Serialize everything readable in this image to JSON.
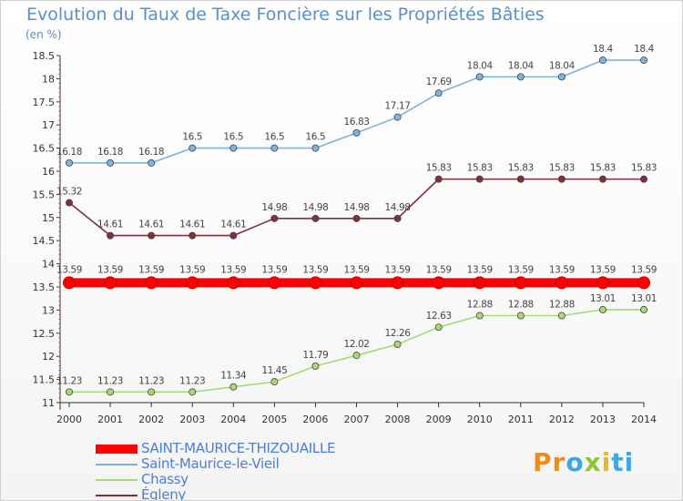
{
  "header": {
    "title": "Evolution du Taux de Taxe Foncière sur les Propriétés Bâties",
    "unit": "(en %)"
  },
  "brand": {
    "part1": "Pr",
    "part2": "o",
    "part3": "x",
    "part4": "i",
    "part5": "ti"
  },
  "chart_data": {
    "type": "line",
    "title": "Evolution du Taux de Taxe Foncière sur les Propriétés Bâties",
    "ylabel": "(en %)",
    "x": [
      2000,
      2001,
      2002,
      2003,
      2004,
      2005,
      2006,
      2007,
      2008,
      2009,
      2010,
      2011,
      2012,
      2013,
      2014
    ],
    "ylim": [
      11,
      18.5
    ],
    "yticks": [
      11,
      11.5,
      12,
      12.5,
      13,
      13.5,
      14,
      14.5,
      15,
      15.5,
      16,
      16.5,
      17,
      17.5,
      18,
      18.5
    ],
    "grid": false,
    "legend": "bottom-left",
    "series": [
      {
        "name": "SAINT-MAURICE-THIZOUAILLE",
        "color": "#ff0000",
        "values": [
          13.59,
          13.59,
          13.59,
          13.59,
          13.59,
          13.59,
          13.59,
          13.59,
          13.59,
          13.59,
          13.59,
          13.59,
          13.59,
          13.59,
          13.59
        ],
        "labels": [
          "13.59",
          "13.59",
          "13.59",
          "13.59",
          "13.59",
          "13.59",
          "13.59",
          "13.59",
          "13.59",
          "13.59",
          "13.59",
          "13.59",
          "13.59",
          "13.59",
          "13.59"
        ]
      },
      {
        "name": "Saint-Maurice-le-Vieil",
        "color": "#7eb3dc",
        "values": [
          16.18,
          16.18,
          16.18,
          16.5,
          16.5,
          16.5,
          16.5,
          16.83,
          17.17,
          17.69,
          18.04,
          18.04,
          18.04,
          18.4,
          18.4
        ],
        "labels": [
          "16.18",
          "16.18",
          "16.18",
          "16.5",
          "16.5",
          "16.5",
          "16.5",
          "16.83",
          "17.17",
          "17.69",
          "18.04",
          "18.04",
          "18.04",
          "18.4",
          "18.4"
        ]
      },
      {
        "name": "Chassy",
        "color": "#a8d878",
        "values": [
          11.23,
          11.23,
          11.23,
          11.23,
          11.34,
          11.45,
          11.79,
          12.02,
          12.26,
          12.63,
          12.88,
          12.88,
          12.88,
          13.01,
          13.01
        ],
        "labels": [
          "11.23",
          "11.23",
          "11.23",
          "11.23",
          "11.34",
          "11.45",
          "11.79",
          "12.02",
          "12.26",
          "12.63",
          "12.88",
          "12.88",
          "12.88",
          "13.01",
          "13.01"
        ]
      },
      {
        "name": "Égleny",
        "color": "#7b3238",
        "values": [
          15.32,
          14.61,
          14.61,
          14.61,
          14.61,
          14.98,
          14.98,
          14.98,
          14.98,
          15.83,
          15.83,
          15.83,
          15.83,
          15.83,
          15.83
        ],
        "labels": [
          "15.32",
          "14.61",
          "14.61",
          "14.61",
          "14.61",
          "14.98",
          "14.98",
          "14.98",
          "14.98",
          "15.83",
          "15.83",
          "15.83",
          "15.83",
          "15.83",
          "15.83"
        ]
      }
    ]
  }
}
